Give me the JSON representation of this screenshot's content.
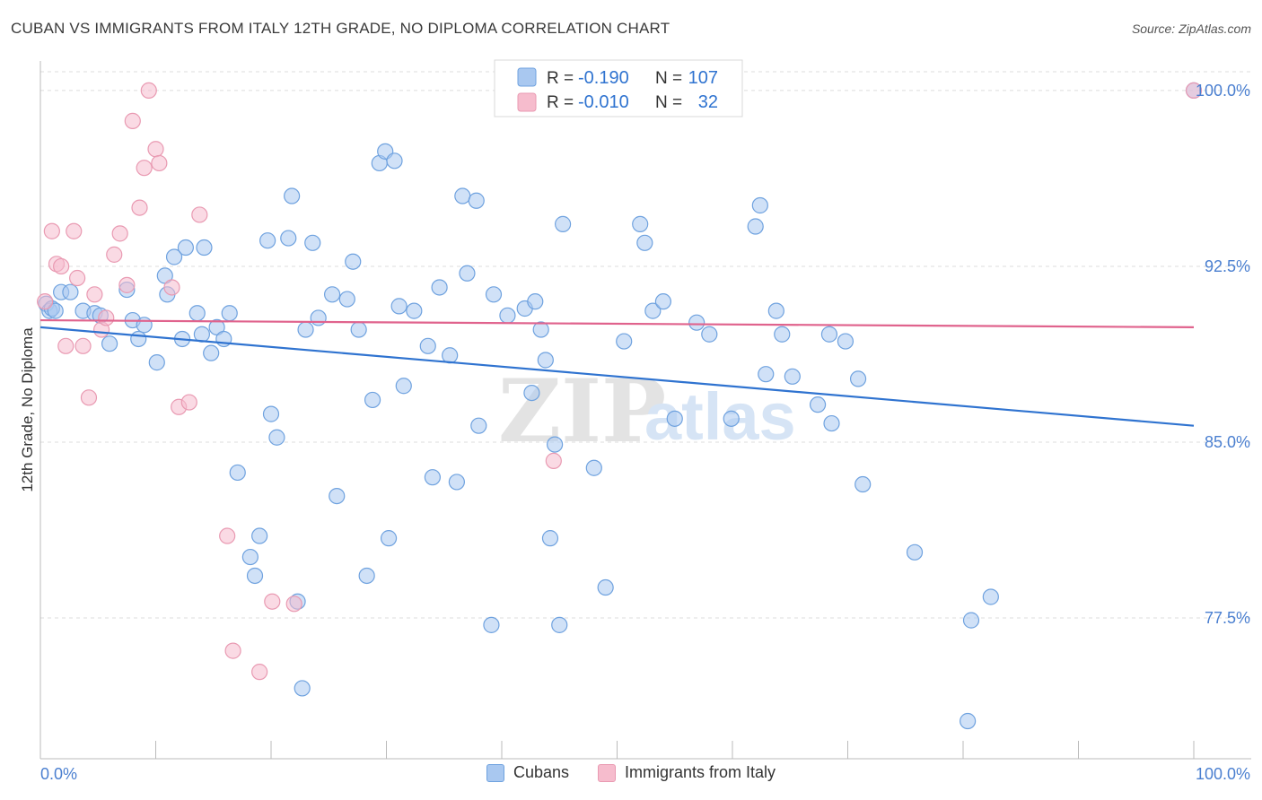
{
  "header": {
    "title": "CUBAN VS IMMIGRANTS FROM ITALY 12TH GRADE, NO DIPLOMA CORRELATION CHART",
    "source": "Source: ZipAtlas.com"
  },
  "watermark": {
    "zip": "ZIP",
    "atlas": "atlas"
  },
  "colors": {
    "blue_fill": "#a9c8f0",
    "blue_stroke": "#6fa2df",
    "blue_line": "#2f73d0",
    "pink_fill": "#f6bccd",
    "pink_stroke": "#e99ab2",
    "pink_line": "#e0638d",
    "tick_text": "#4a7fd0",
    "grid": "#dddddd"
  },
  "legend_box": {
    "rows": [
      {
        "r_label": "R =",
        "r_value": "-0.190",
        "n_label": "N =",
        "n_value": "107"
      },
      {
        "r_label": "R =",
        "r_value": "-0.010",
        "n_label": "N =",
        "n_value": "32"
      }
    ]
  },
  "legend_bottom": {
    "cubans": "Cubans",
    "italy": "Immigrants from Italy"
  },
  "chart_data": {
    "type": "scatter",
    "title": "CUBAN VS IMMIGRANTS FROM ITALY 12TH GRADE, NO DIPLOMA CORRELATION CHART",
    "xlabel": "",
    "ylabel": "12th Grade, No Diploma",
    "xlim": [
      0,
      100
    ],
    "ylim": [
      71.8,
      100.8
    ],
    "x_tick_labels": [
      "0.0%",
      "100.0%"
    ],
    "y_ticks": [
      77.5,
      85.0,
      92.5,
      100.0
    ],
    "y_tick_labels": [
      "77.5%",
      "85.0%",
      "92.5%",
      "100.0%"
    ],
    "grid": true,
    "series": [
      {
        "name": "Cubans",
        "trend": {
          "x": [
            0,
            100
          ],
          "y": [
            89.9,
            85.7
          ]
        },
        "points": [
          [
            0.5,
            90.9
          ],
          [
            0.8,
            90.6
          ],
          [
            1.0,
            90.7
          ],
          [
            1.3,
            90.6
          ],
          [
            1.8,
            91.4
          ],
          [
            2.6,
            91.4
          ],
          [
            3.7,
            90.6
          ],
          [
            4.7,
            90.5
          ],
          [
            5.2,
            90.4
          ],
          [
            7.5,
            91.5
          ],
          [
            8.0,
            90.2
          ],
          [
            9.0,
            90.0
          ],
          [
            11.0,
            91.3
          ],
          [
            11.6,
            92.9
          ],
          [
            10.8,
            92.1
          ],
          [
            10.1,
            88.4
          ],
          [
            6.0,
            89.2
          ],
          [
            8.5,
            89.4
          ],
          [
            12.3,
            89.4
          ],
          [
            12.6,
            93.3
          ],
          [
            14.2,
            93.3
          ],
          [
            13.6,
            90.5
          ],
          [
            14.0,
            89.6
          ],
          [
            14.8,
            88.8
          ],
          [
            15.3,
            89.9
          ],
          [
            15.9,
            89.4
          ],
          [
            16.4,
            90.5
          ],
          [
            17.1,
            83.7
          ],
          [
            18.2,
            80.1
          ],
          [
            18.6,
            79.3
          ],
          [
            19.0,
            81.0
          ],
          [
            19.7,
            93.6
          ],
          [
            20.0,
            86.2
          ],
          [
            20.5,
            85.2
          ],
          [
            21.5,
            93.7
          ],
          [
            21.8,
            95.5
          ],
          [
            22.3,
            78.2
          ],
          [
            22.7,
            74.5
          ],
          [
            23.0,
            89.8
          ],
          [
            23.6,
            93.5
          ],
          [
            24.1,
            90.3
          ],
          [
            25.3,
            91.3
          ],
          [
            25.7,
            82.7
          ],
          [
            26.6,
            91.1
          ],
          [
            27.1,
            92.7
          ],
          [
            27.6,
            89.8
          ],
          [
            28.3,
            79.3
          ],
          [
            28.8,
            86.8
          ],
          [
            29.4,
            96.9
          ],
          [
            29.9,
            97.4
          ],
          [
            30.2,
            80.9
          ],
          [
            30.7,
            97.0
          ],
          [
            31.1,
            90.8
          ],
          [
            31.5,
            87.4
          ],
          [
            32.4,
            90.6
          ],
          [
            33.6,
            89.1
          ],
          [
            34.0,
            83.5
          ],
          [
            34.6,
            91.6
          ],
          [
            35.5,
            88.7
          ],
          [
            36.1,
            83.3
          ],
          [
            36.6,
            95.5
          ],
          [
            37.0,
            92.2
          ],
          [
            37.8,
            95.3
          ],
          [
            38.0,
            85.7
          ],
          [
            39.1,
            77.2
          ],
          [
            39.3,
            91.3
          ],
          [
            40.5,
            90.4
          ],
          [
            42.0,
            90.7
          ],
          [
            42.6,
            87.1
          ],
          [
            42.9,
            91.0
          ],
          [
            43.4,
            89.8
          ],
          [
            43.8,
            88.5
          ],
          [
            44.2,
            80.9
          ],
          [
            44.6,
            84.9
          ],
          [
            45.0,
            77.2
          ],
          [
            45.3,
            94.3
          ],
          [
            48.0,
            83.9
          ],
          [
            49.0,
            78.8
          ],
          [
            50.6,
            89.3
          ],
          [
            52.0,
            94.3
          ],
          [
            52.4,
            93.5
          ],
          [
            53.1,
            90.6
          ],
          [
            54.0,
            91.0
          ],
          [
            55.0,
            86.0
          ],
          [
            56.9,
            90.1
          ],
          [
            58.0,
            89.6
          ],
          [
            59.9,
            86.0
          ],
          [
            62.0,
            94.2
          ],
          [
            62.4,
            95.1
          ],
          [
            62.9,
            87.9
          ],
          [
            63.8,
            90.6
          ],
          [
            64.3,
            89.6
          ],
          [
            65.2,
            87.8
          ],
          [
            67.4,
            86.6
          ],
          [
            68.4,
            89.6
          ],
          [
            68.6,
            85.8
          ],
          [
            69.8,
            89.3
          ],
          [
            70.9,
            87.7
          ],
          [
            71.3,
            83.2
          ],
          [
            75.8,
            80.3
          ],
          [
            80.4,
            73.1
          ],
          [
            80.7,
            77.4
          ],
          [
            82.4,
            78.4
          ],
          [
            100,
            100.0
          ]
        ]
      },
      {
        "name": "Immigrants from Italy",
        "trend": {
          "x": [
            0,
            100
          ],
          "y": [
            90.2,
            89.9
          ]
        },
        "points": [
          [
            0.4,
            91.0
          ],
          [
            1.0,
            94.0
          ],
          [
            1.4,
            92.6
          ],
          [
            1.8,
            92.5
          ],
          [
            2.2,
            89.1
          ],
          [
            2.9,
            94.0
          ],
          [
            3.2,
            92.0
          ],
          [
            3.7,
            89.1
          ],
          [
            4.2,
            86.9
          ],
          [
            4.7,
            91.3
          ],
          [
            5.3,
            89.8
          ],
          [
            5.7,
            90.3
          ],
          [
            6.4,
            93.0
          ],
          [
            6.9,
            93.9
          ],
          [
            7.5,
            91.7
          ],
          [
            8.0,
            98.7
          ],
          [
            8.6,
            95.0
          ],
          [
            9.0,
            96.7
          ],
          [
            9.4,
            100.0
          ],
          [
            10.0,
            97.5
          ],
          [
            10.3,
            96.9
          ],
          [
            11.4,
            91.6
          ],
          [
            12.0,
            86.5
          ],
          [
            12.9,
            86.7
          ],
          [
            13.8,
            94.7
          ],
          [
            16.2,
            81.0
          ],
          [
            16.7,
            76.1
          ],
          [
            19.0,
            75.2
          ],
          [
            20.1,
            78.2
          ],
          [
            22.0,
            78.1
          ],
          [
            44.5,
            84.2
          ],
          [
            100,
            100.0
          ]
        ]
      }
    ]
  }
}
